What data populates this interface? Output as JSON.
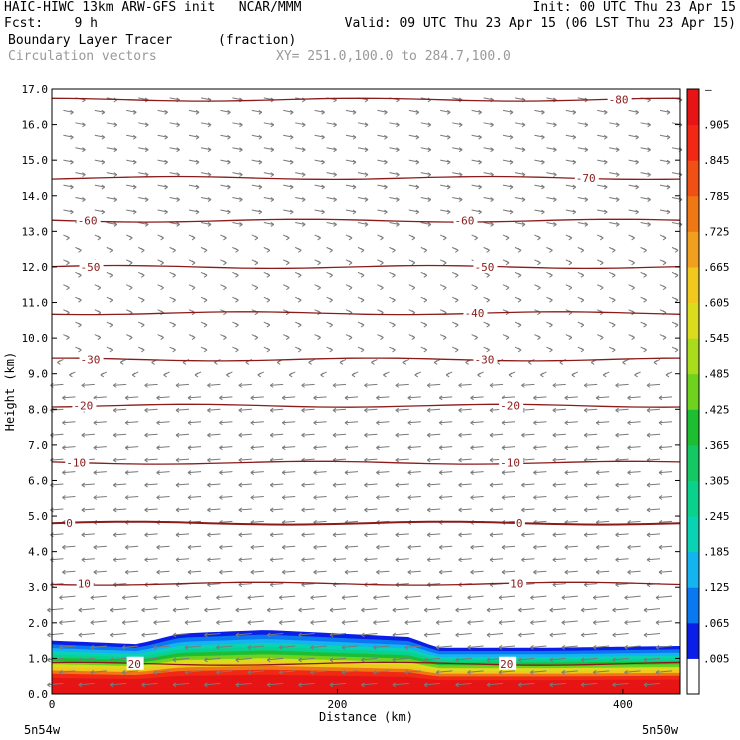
{
  "header": {
    "line1_left": "HAIC-HIWC 13km ARW-GFS init   NCAR/MMM",
    "line1_right": "Init: 00 UTC Thu 23 Apr 15",
    "line2_left": "Fcst:    9 h",
    "line2_right": "Valid: 09 UTC Thu 23 Apr 15 (06 LST Thu 23 Apr 15)",
    "field_name": "Boundary Layer Tracer",
    "field_units": "(fraction)",
    "vector_label": "Circulation vectors",
    "xsec_coords": "XY= 251.0,100.0 to 284.7,100.0"
  },
  "chart_data": {
    "type": "heatmap",
    "title": "Boundary Layer Tracer (fraction)",
    "xlabel": "Distance (km)",
    "ylabel": "Height (km)",
    "xlim": [
      0,
      440
    ],
    "ylim": [
      0,
      17
    ],
    "x_ticks": [
      0,
      200,
      400
    ],
    "y_ticks": [
      "0.0",
      "1.0",
      "2.0",
      "3.0",
      "4.0",
      "5.0",
      "6.0",
      "7.0",
      "8.0",
      "9.0",
      "10.0",
      "11.0",
      "12.0",
      "13.0",
      "14.0",
      "15.0",
      "16.0",
      "17.0"
    ],
    "x_endpoint_labels": {
      "left": "5n54w",
      "right": "5n50w"
    },
    "colorbar": {
      "labels": [
        ".005",
        ".065",
        ".125",
        ".185",
        ".245",
        ".305",
        ".365",
        ".425",
        ".485",
        ".545",
        ".605",
        ".665",
        ".725",
        ".785",
        ".845",
        ".905"
      ],
      "top_label": "–",
      "colors": [
        "#ffffff",
        "#0a1ee6",
        "#0a78f0",
        "#14b4f0",
        "#0ad2b4",
        "#0ad28c",
        "#14c864",
        "#1ebe32",
        "#6ed21e",
        "#aadc1e",
        "#dcdc1e",
        "#f0c81e",
        "#f0a01e",
        "#f07814",
        "#f05014",
        "#f02814",
        "#e61414"
      ]
    },
    "tracer_profile": {
      "x_km": [
        0,
        60,
        90,
        150,
        250,
        270,
        350,
        440
      ],
      "top_height_km": [
        1.5,
        1.4,
        1.7,
        1.8,
        1.6,
        1.3,
        1.3,
        1.35
      ]
    },
    "temperature_contours": {
      "units": "C",
      "levels": [
        {
          "value": -80,
          "height_km": 16.7
        },
        {
          "value": -70,
          "height_km": 14.5
        },
        {
          "value": -60,
          "height_km": 13.3
        },
        {
          "value": -50,
          "height_km": 12.0
        },
        {
          "value": -40,
          "height_km": 10.7
        },
        {
          "value": -30,
          "height_km": 9.4
        },
        {
          "value": -20,
          "height_km": 8.1
        },
        {
          "value": -10,
          "height_km": 6.5
        },
        {
          "value": 0,
          "height_km": 4.8
        },
        {
          "value": 10,
          "height_km": 3.1
        },
        {
          "value": 20,
          "height_km": 0.85
        }
      ],
      "labels_shown": [
        {
          "text": "-80",
          "x_km": 390,
          "y_km": 16.7
        },
        {
          "text": "-70",
          "x_km": 367,
          "y_km": 14.5
        },
        {
          "text": "-60",
          "x_km": 18,
          "y_km": 13.3
        },
        {
          "text": "-60",
          "x_km": 282,
          "y_km": 13.3
        },
        {
          "text": "-50",
          "x_km": 20,
          "y_km": 12.0
        },
        {
          "text": "-50",
          "x_km": 296,
          "y_km": 12.0
        },
        {
          "text": "-40",
          "x_km": 289,
          "y_km": 10.7
        },
        {
          "text": "-30",
          "x_km": 20,
          "y_km": 9.4
        },
        {
          "text": "-30",
          "x_km": 296,
          "y_km": 9.4
        },
        {
          "text": "-20",
          "x_km": 15,
          "y_km": 8.1
        },
        {
          "text": "-20",
          "x_km": 314,
          "y_km": 8.1
        },
        {
          "text": "-10",
          "x_km": 10,
          "y_km": 6.5
        },
        {
          "text": "-10",
          "x_km": 314,
          "y_km": 6.5
        },
        {
          "text": "0",
          "x_km": 10,
          "y_km": 4.8
        },
        {
          "text": "0",
          "x_km": 325,
          "y_km": 4.8
        },
        {
          "text": "10",
          "x_km": 18,
          "y_km": 3.1
        },
        {
          "text": "10",
          "x_km": 321,
          "y_km": 3.1
        },
        {
          "text": "20",
          "x_km": 53,
          "y_km": 0.85
        },
        {
          "text": "20",
          "x_km": 314,
          "y_km": 0.85
        }
      ]
    }
  }
}
